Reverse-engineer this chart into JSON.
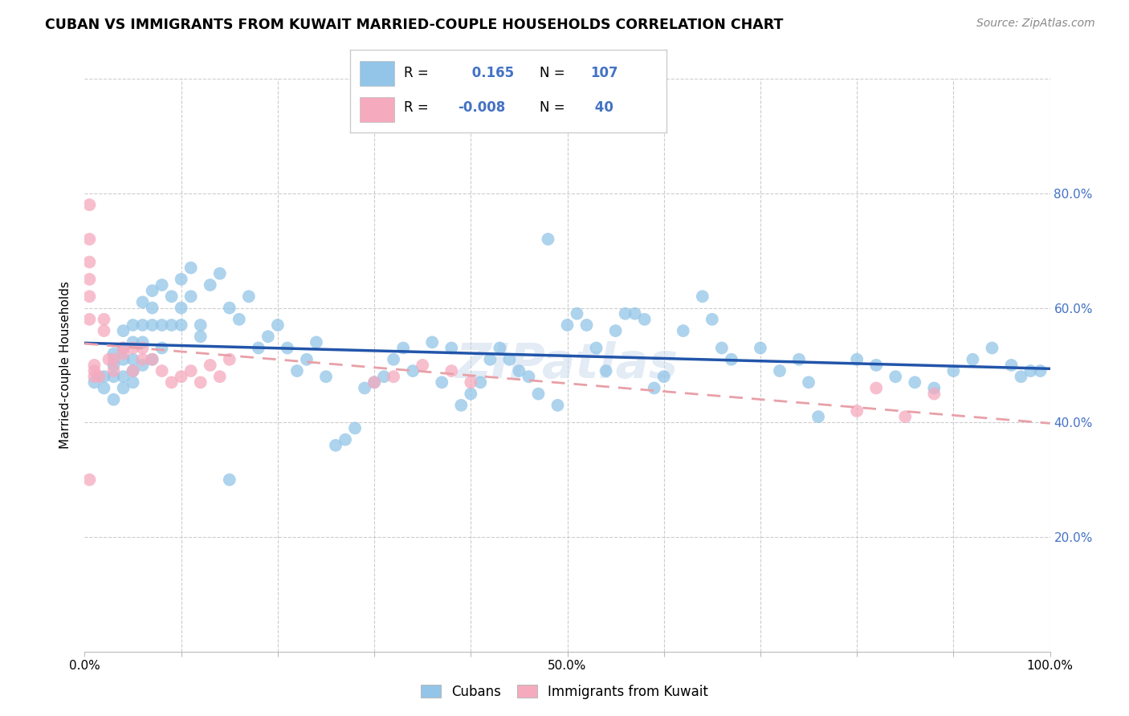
{
  "title": "CUBAN VS IMMIGRANTS FROM KUWAIT MARRIED-COUPLE HOUSEHOLDS CORRELATION CHART",
  "source": "Source: ZipAtlas.com",
  "ylabel": "Married-couple Households",
  "xlim": [
    0.0,
    1.0
  ],
  "ylim": [
    0.0,
    1.0
  ],
  "xtick_positions": [
    0.0,
    0.1,
    0.2,
    0.3,
    0.4,
    0.5,
    0.6,
    0.7,
    0.8,
    0.9,
    1.0
  ],
  "xtick_labels": [
    "0.0%",
    "",
    "",
    "",
    "",
    "50.0%",
    "",
    "",
    "",
    "",
    "100.0%"
  ],
  "ytick_positions": [
    0.0,
    0.2,
    0.4,
    0.6,
    0.8,
    1.0
  ],
  "ytick_labels_right": [
    "",
    "20.0%",
    "40.0%",
    "60.0%",
    "80.0%",
    ""
  ],
  "cubans_color": "#92C5E8",
  "kuwait_color": "#F5AABE",
  "trendline_cubans_color": "#2255AA",
  "trendline_kuwait_color": "#E8A0A8",
  "R_cubans": 0.165,
  "N_cubans": 107,
  "R_kuwait": -0.008,
  "N_kuwait": 40,
  "watermark": "ZIPatlas",
  "legend_label_cubans": "Cubans",
  "legend_label_kuwait": "Immigrants from Kuwait",
  "cubans_x": [
    0.01,
    0.02,
    0.02,
    0.03,
    0.03,
    0.03,
    0.03,
    0.04,
    0.04,
    0.04,
    0.04,
    0.04,
    0.05,
    0.05,
    0.05,
    0.05,
    0.05,
    0.06,
    0.06,
    0.06,
    0.06,
    0.07,
    0.07,
    0.07,
    0.07,
    0.08,
    0.08,
    0.08,
    0.09,
    0.09,
    0.1,
    0.1,
    0.1,
    0.11,
    0.11,
    0.12,
    0.12,
    0.13,
    0.14,
    0.15,
    0.15,
    0.16,
    0.17,
    0.18,
    0.19,
    0.2,
    0.21,
    0.22,
    0.23,
    0.24,
    0.25,
    0.26,
    0.27,
    0.28,
    0.29,
    0.3,
    0.31,
    0.32,
    0.33,
    0.34,
    0.36,
    0.37,
    0.38,
    0.39,
    0.4,
    0.41,
    0.42,
    0.43,
    0.44,
    0.45,
    0.46,
    0.47,
    0.48,
    0.49,
    0.5,
    0.51,
    0.52,
    0.53,
    0.54,
    0.55,
    0.56,
    0.57,
    0.58,
    0.59,
    0.6,
    0.62,
    0.64,
    0.65,
    0.66,
    0.67,
    0.7,
    0.72,
    0.74,
    0.75,
    0.76,
    0.8,
    0.82,
    0.84,
    0.86,
    0.88,
    0.9,
    0.92,
    0.94,
    0.96,
    0.97,
    0.98,
    0.99
  ],
  "cubans_y": [
    0.47,
    0.48,
    0.46,
    0.52,
    0.5,
    0.48,
    0.44,
    0.56,
    0.53,
    0.51,
    0.48,
    0.46,
    0.57,
    0.54,
    0.51,
    0.49,
    0.47,
    0.61,
    0.57,
    0.54,
    0.5,
    0.63,
    0.6,
    0.57,
    0.51,
    0.64,
    0.57,
    0.53,
    0.62,
    0.57,
    0.65,
    0.6,
    0.57,
    0.67,
    0.62,
    0.57,
    0.55,
    0.64,
    0.66,
    0.3,
    0.6,
    0.58,
    0.62,
    0.53,
    0.55,
    0.57,
    0.53,
    0.49,
    0.51,
    0.54,
    0.48,
    0.36,
    0.37,
    0.39,
    0.46,
    0.47,
    0.48,
    0.51,
    0.53,
    0.49,
    0.54,
    0.47,
    0.53,
    0.43,
    0.45,
    0.47,
    0.51,
    0.53,
    0.51,
    0.49,
    0.48,
    0.45,
    0.72,
    0.43,
    0.57,
    0.59,
    0.57,
    0.53,
    0.49,
    0.56,
    0.59,
    0.59,
    0.58,
    0.46,
    0.48,
    0.56,
    0.62,
    0.58,
    0.53,
    0.51,
    0.53,
    0.49,
    0.51,
    0.47,
    0.41,
    0.51,
    0.5,
    0.48,
    0.47,
    0.46,
    0.49,
    0.51,
    0.53,
    0.5,
    0.48,
    0.49,
    0.49
  ],
  "kuwait_x": [
    0.005,
    0.005,
    0.005,
    0.005,
    0.005,
    0.005,
    0.005,
    0.01,
    0.01,
    0.01,
    0.015,
    0.02,
    0.02,
    0.025,
    0.03,
    0.03,
    0.04,
    0.04,
    0.05,
    0.05,
    0.06,
    0.06,
    0.07,
    0.08,
    0.09,
    0.1,
    0.11,
    0.12,
    0.13,
    0.14,
    0.15,
    0.3,
    0.32,
    0.35,
    0.38,
    0.4,
    0.8,
    0.82,
    0.85,
    0.88
  ],
  "kuwait_y": [
    0.78,
    0.72,
    0.68,
    0.65,
    0.62,
    0.58,
    0.3,
    0.5,
    0.49,
    0.48,
    0.48,
    0.58,
    0.56,
    0.51,
    0.51,
    0.49,
    0.53,
    0.52,
    0.53,
    0.49,
    0.53,
    0.51,
    0.51,
    0.49,
    0.47,
    0.48,
    0.49,
    0.47,
    0.5,
    0.48,
    0.51,
    0.47,
    0.48,
    0.5,
    0.49,
    0.47,
    0.42,
    0.46,
    0.41,
    0.45
  ]
}
